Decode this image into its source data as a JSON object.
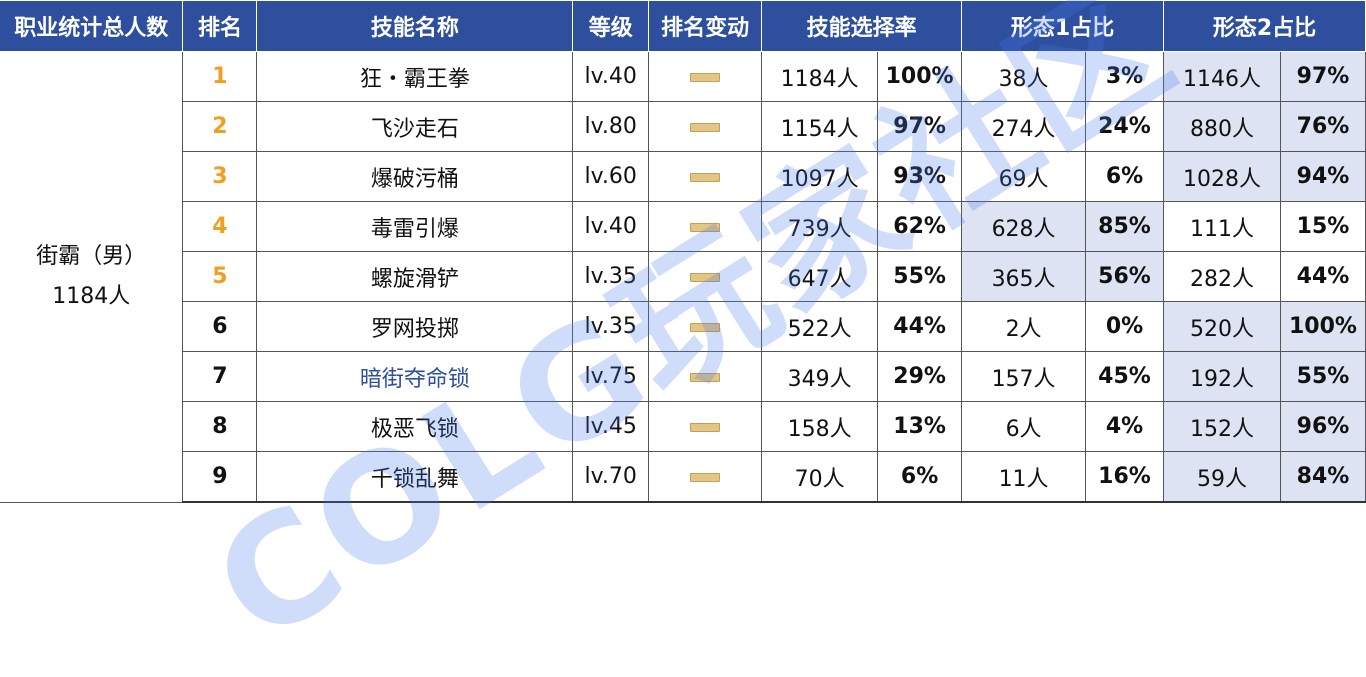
{
  "headers": {
    "job_total": "职业统计总人数",
    "rank": "排名",
    "skill_name": "技能名称",
    "level": "等级",
    "rank_change": "排名变动",
    "select_rate": "技能选择率",
    "form1": "形态1占比",
    "form2": "形态2占比"
  },
  "job": {
    "name": "街霸（男）",
    "total": "1184人"
  },
  "rows": [
    {
      "rank": "1",
      "name": "狂・霸王拳",
      "level": "lv.40",
      "sel_count": "1184人",
      "sel_pct": "100%",
      "f1_count": "38人",
      "f1_pct": "3%",
      "f2_count": "1146人",
      "f2_pct": "97%"
    },
    {
      "rank": "2",
      "name": "飞沙走石",
      "level": "lv.80",
      "sel_count": "1154人",
      "sel_pct": "97%",
      "f1_count": "274人",
      "f1_pct": "24%",
      "f2_count": "880人",
      "f2_pct": "76%"
    },
    {
      "rank": "3",
      "name": "爆破污桶",
      "level": "lv.60",
      "sel_count": "1097人",
      "sel_pct": "93%",
      "f1_count": "69人",
      "f1_pct": "6%",
      "f2_count": "1028人",
      "f2_pct": "94%"
    },
    {
      "rank": "4",
      "name": "毒雷引爆",
      "level": "lv.40",
      "sel_count": "739人",
      "sel_pct": "62%",
      "f1_count": "628人",
      "f1_pct": "85%",
      "f2_count": "111人",
      "f2_pct": "15%"
    },
    {
      "rank": "5",
      "name": "螺旋滑铲",
      "level": "lv.35",
      "sel_count": "647人",
      "sel_pct": "55%",
      "f1_count": "365人",
      "f1_pct": "56%",
      "f2_count": "282人",
      "f2_pct": "44%"
    },
    {
      "rank": "6",
      "name": "罗网投掷",
      "level": "lv.35",
      "sel_count": "522人",
      "sel_pct": "44%",
      "f1_count": "2人",
      "f1_pct": "0%",
      "f2_count": "520人",
      "f2_pct": "100%"
    },
    {
      "rank": "7",
      "name": "暗街夺命锁",
      "level": "lv.75",
      "sel_count": "349人",
      "sel_pct": "29%",
      "f1_count": "157人",
      "f1_pct": "45%",
      "f2_count": "192人",
      "f2_pct": "55%"
    },
    {
      "rank": "8",
      "name": "极恶飞锁",
      "level": "lv.45",
      "sel_count": "158人",
      "sel_pct": "13%",
      "f1_count": "6人",
      "f1_pct": "4%",
      "f2_count": "152人",
      "f2_pct": "96%"
    },
    {
      "rank": "9",
      "name": "千锁乱舞",
      "level": "lv.70",
      "sel_count": "70人",
      "sel_pct": "6%",
      "f1_count": "11人",
      "f1_pct": "16%",
      "f2_count": "59人",
      "f2_pct": "84%"
    }
  ],
  "rank_change_icon": "no-change-dash-icon",
  "watermark": "COLG玩家社区",
  "colors": {
    "header_bg": "#2d4f9e",
    "highlight_bg": "#dde3f3",
    "top_rank": "#f0a020",
    "dash": "#e3c585"
  }
}
